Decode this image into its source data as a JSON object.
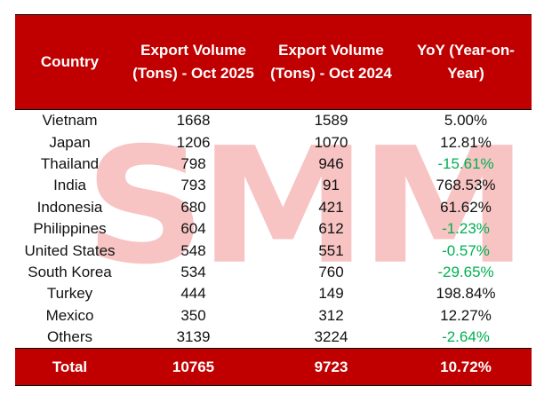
{
  "watermark": "SMM",
  "colors": {
    "header_bg": "#C00000",
    "negative": "#00B050",
    "header_text": "#FFFFFF"
  },
  "table": {
    "headers": [
      "Country",
      "Export Volume (Tons) - Oct 2025",
      "Export Volume (Tons) - Oct 2024",
      "YoY (Year-on-Year)"
    ],
    "rows": [
      {
        "country": "Vietnam",
        "oct2025": "1668",
        "oct2024": "1589",
        "yoy": "5.00%"
      },
      {
        "country": "Japan",
        "oct2025": "1206",
        "oct2024": "1070",
        "yoy": "12.81%"
      },
      {
        "country": "Thailand",
        "oct2025": "798",
        "oct2024": "946",
        "yoy": "-15.61%"
      },
      {
        "country": "India",
        "oct2025": "793",
        "oct2024": "91",
        "yoy": "768.53%"
      },
      {
        "country": "Indonesia",
        "oct2025": "680",
        "oct2024": "421",
        "yoy": "61.62%"
      },
      {
        "country": "Philippines",
        "oct2025": "604",
        "oct2024": "612",
        "yoy": "-1.23%"
      },
      {
        "country": "United States",
        "oct2025": "548",
        "oct2024": "551",
        "yoy": "-0.57%"
      },
      {
        "country": "South Korea",
        "oct2025": "534",
        "oct2024": "760",
        "yoy": "-29.65%"
      },
      {
        "country": "Turkey",
        "oct2025": "444",
        "oct2024": "149",
        "yoy": "198.84%"
      },
      {
        "country": "Mexico",
        "oct2025": "350",
        "oct2024": "312",
        "yoy": "12.27%"
      },
      {
        "country": "Others",
        "oct2025": "3139",
        "oct2024": "3224",
        "yoy": "-2.64%"
      }
    ],
    "total": {
      "label": "Total",
      "oct2025": "10765",
      "oct2024": "9723",
      "yoy": "10.72%"
    }
  }
}
